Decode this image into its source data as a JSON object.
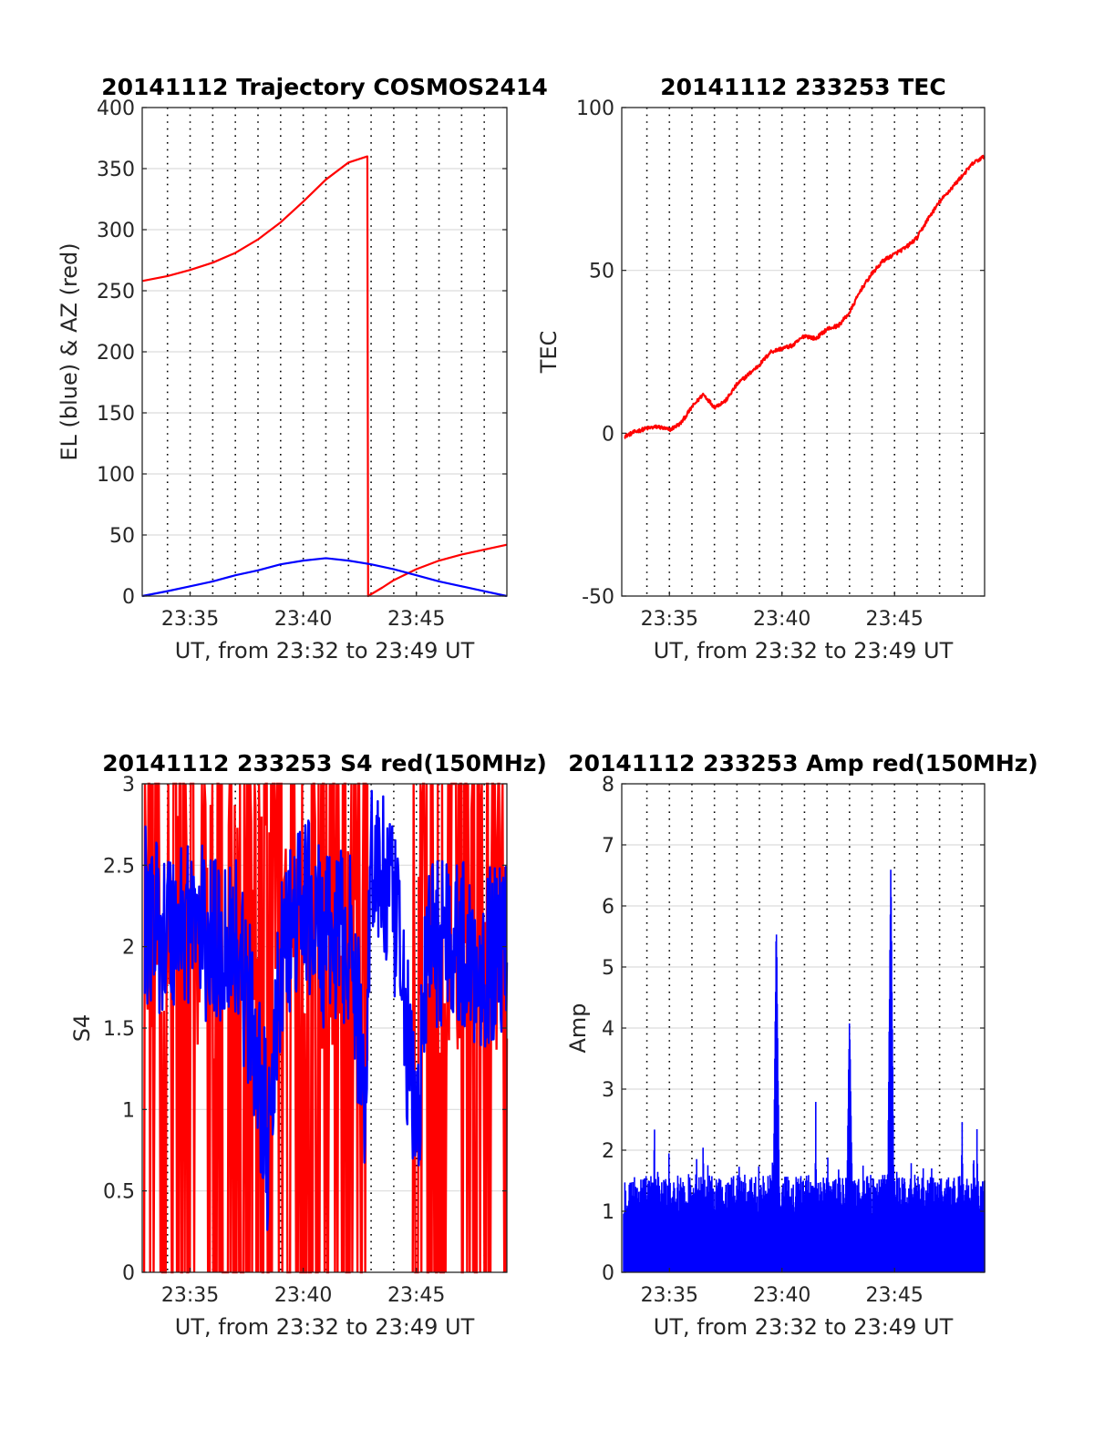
{
  "figure": {
    "background": "#ffffff"
  },
  "chart_data": [
    {
      "id": "trajectory",
      "type": "line",
      "title": "20141112 Trajectory COSMOS2414",
      "xlabel": "UT, from 23:32 to 23:49 UT",
      "ylabel": "EL (blue) & AZ (red)",
      "xlim": [
        "23:32:53",
        "23:49:00"
      ],
      "ylim": [
        0,
        400
      ],
      "yticks": [
        0,
        50,
        100,
        150,
        200,
        250,
        300,
        350,
        400
      ],
      "xticks": [
        "23:35",
        "23:40",
        "23:45"
      ],
      "vgrid_minutes": [
        "23:34",
        "23:35",
        "23:36",
        "23:37",
        "23:38",
        "23:39",
        "23:40",
        "23:41",
        "23:42",
        "23:43",
        "23:44",
        "23:45",
        "23:46",
        "23:47",
        "23:48"
      ],
      "hgrid": true,
      "series": [
        {
          "color": "#ff0000",
          "points": [
            [
              "23:32:53",
              258
            ],
            [
              "23:34:00",
              262
            ],
            [
              "23:35:00",
              267
            ],
            [
              "23:36:00",
              273
            ],
            [
              "23:37:00",
              281
            ],
            [
              "23:38:00",
              292
            ],
            [
              "23:39:00",
              306
            ],
            [
              "23:40:00",
              323
            ],
            [
              "23:41:00",
              341
            ],
            [
              "23:42:00",
              355
            ],
            [
              "23:42:50",
              360
            ],
            [
              "23:42:52",
              0
            ],
            [
              "23:43:30",
              7
            ],
            [
              "23:44:00",
              13
            ],
            [
              "23:45:00",
              22
            ],
            [
              "23:46:00",
              29
            ],
            [
              "23:47:00",
              34
            ],
            [
              "23:48:00",
              38
            ],
            [
              "23:49:00",
              42
            ]
          ]
        },
        {
          "color": "#0000ff",
          "points": [
            [
              "23:32:53",
              0
            ],
            [
              "23:34:00",
              4
            ],
            [
              "23:35:00",
              8
            ],
            [
              "23:36:00",
              12
            ],
            [
              "23:37:00",
              17
            ],
            [
              "23:38:00",
              21
            ],
            [
              "23:39:00",
              26
            ],
            [
              "23:40:00",
              29
            ],
            [
              "23:41:00",
              31
            ],
            [
              "23:42:00",
              29
            ],
            [
              "23:43:00",
              26
            ],
            [
              "23:44:00",
              22
            ],
            [
              "23:45:00",
              17
            ],
            [
              "23:46:00",
              12
            ],
            [
              "23:47:00",
              8
            ],
            [
              "23:48:00",
              4
            ],
            [
              "23:49:00",
              0
            ]
          ]
        }
      ]
    },
    {
      "id": "tec",
      "type": "line",
      "title": "20141112 233253 TEC",
      "xlabel": "UT, from 23:32 to 23:49 UT",
      "ylabel": "TEC",
      "xlim": [
        "23:32:53",
        "23:49:00"
      ],
      "ylim": [
        -50,
        100
      ],
      "yticks": [
        -50,
        0,
        50,
        100
      ],
      "xticks": [
        "23:35",
        "23:40",
        "23:45"
      ],
      "vgrid_minutes": [
        "23:34",
        "23:35",
        "23:36",
        "23:37",
        "23:38",
        "23:39",
        "23:40",
        "23:41",
        "23:42",
        "23:43",
        "23:44",
        "23:45",
        "23:46",
        "23:47",
        "23:48"
      ],
      "hgrid": true,
      "noise": 0.6,
      "series": [
        {
          "color": "#ff0000",
          "points": [
            [
              "23:33:00",
              -1
            ],
            [
              "23:33:30",
              0.5
            ],
            [
              "23:34:00",
              1.5
            ],
            [
              "23:34:30",
              2
            ],
            [
              "23:35:00",
              1
            ],
            [
              "23:35:30",
              3
            ],
            [
              "23:36:00",
              8
            ],
            [
              "23:36:30",
              12
            ],
            [
              "23:37:00",
              8
            ],
            [
              "23:37:30",
              10
            ],
            [
              "23:38:00",
              15
            ],
            [
              "23:38:30",
              18
            ],
            [
              "23:39:00",
              21
            ],
            [
              "23:39:30",
              25
            ],
            [
              "23:40:00",
              26
            ],
            [
              "23:40:30",
              27
            ],
            [
              "23:41:00",
              30
            ],
            [
              "23:41:30",
              29
            ],
            [
              "23:42:00",
              32
            ],
            [
              "23:42:30",
              33
            ],
            [
              "23:43:00",
              37
            ],
            [
              "23:43:30",
              44
            ],
            [
              "23:44:00",
              49
            ],
            [
              "23:44:30",
              53
            ],
            [
              "23:45:00",
              55
            ],
            [
              "23:45:30",
              57
            ],
            [
              "23:46:00",
              60
            ],
            [
              "23:46:30",
              66
            ],
            [
              "23:47:00",
              71
            ],
            [
              "23:47:30",
              75
            ],
            [
              "23:48:00",
              79
            ],
            [
              "23:48:30",
              83
            ],
            [
              "23:49:00",
              85
            ]
          ]
        }
      ]
    },
    {
      "id": "s4",
      "type": "line",
      "title": "20141112 233253 S4 red(150MHz)",
      "xlabel": "UT, from 23:32 to 23:49 UT",
      "ylabel": "S4",
      "xlim": [
        "23:32:53",
        "23:49:00"
      ],
      "ylim": [
        0,
        3
      ],
      "yticks": [
        0,
        0.5,
        1,
        1.5,
        2,
        2.5,
        3
      ],
      "xticks": [
        "23:35",
        "23:40",
        "23:45"
      ],
      "vgrid_minutes": [
        "23:34",
        "23:35",
        "23:36",
        "23:37",
        "23:38",
        "23:39",
        "23:40",
        "23:41",
        "23:42",
        "23:43",
        "23:44",
        "23:45",
        "23:46",
        "23:47",
        "23:48"
      ],
      "hgrid": true,
      "series": [
        {
          "color": "#ff0000",
          "style": "spikes",
          "range": [
            0,
            3
          ],
          "gaps": [
            [
              "23:42:50",
              "23:44:50"
            ]
          ]
        },
        {
          "color": "#0000ff",
          "style": "noisy",
          "noise": 0.55,
          "points": [
            [
              "23:33:00",
              2.2
            ],
            [
              "23:34:00",
              2.1
            ],
            [
              "23:35:00",
              2.2
            ],
            [
              "23:36:00",
              2.0
            ],
            [
              "23:37:00",
              2.1
            ],
            [
              "23:38:00",
              1.3
            ],
            [
              "23:38:30",
              0.7
            ],
            [
              "23:39:00",
              1.9
            ],
            [
              "23:40:00",
              2.3
            ],
            [
              "23:41:00",
              2.0
            ],
            [
              "23:42:00",
              2.1
            ],
            [
              "23:42:45",
              1.1
            ],
            [
              "23:43:00",
              2.6
            ],
            [
              "23:44:00",
              2.2
            ],
            [
              "23:44:30",
              1.6
            ],
            [
              "23:45:00",
              0.8
            ],
            [
              "23:45:30",
              2.0
            ],
            [
              "23:46:30",
              2.1
            ],
            [
              "23:47:30",
              1.9
            ],
            [
              "23:49:00",
              2.0
            ]
          ]
        }
      ]
    },
    {
      "id": "amp",
      "type": "line",
      "title": "20141112 233253 Amp red(150MHz)",
      "xlabel": "UT, from 23:32 to 23:49 UT",
      "ylabel": "Amp",
      "xlim": [
        "23:32:53",
        "23:49:00"
      ],
      "ylim": [
        0,
        8
      ],
      "yticks": [
        0,
        1,
        2,
        3,
        4,
        5,
        6,
        7,
        8
      ],
      "xticks": [
        "23:35",
        "23:40",
        "23:45"
      ],
      "vgrid_minutes": [
        "23:34",
        "23:35",
        "23:36",
        "23:37",
        "23:38",
        "23:39",
        "23:40",
        "23:41",
        "23:42",
        "23:43",
        "23:44",
        "23:45",
        "23:46",
        "23:47",
        "23:48"
      ],
      "hgrid": true,
      "series": [
        {
          "color": "#0000ff",
          "style": "envelope",
          "base_max": 1.6,
          "bursts": [
            [
              "23:39:45",
              5.6
            ],
            [
              "23:43:00",
              4.0
            ],
            [
              "23:44:50",
              6.6
            ],
            [
              "23:36:30",
              2.3
            ],
            [
              "23:34:20",
              2.3
            ],
            [
              "23:41:30",
              2.6
            ],
            [
              "23:48:00",
              2.5
            ],
            [
              "23:48:40",
              2.3
            ]
          ]
        }
      ]
    }
  ]
}
